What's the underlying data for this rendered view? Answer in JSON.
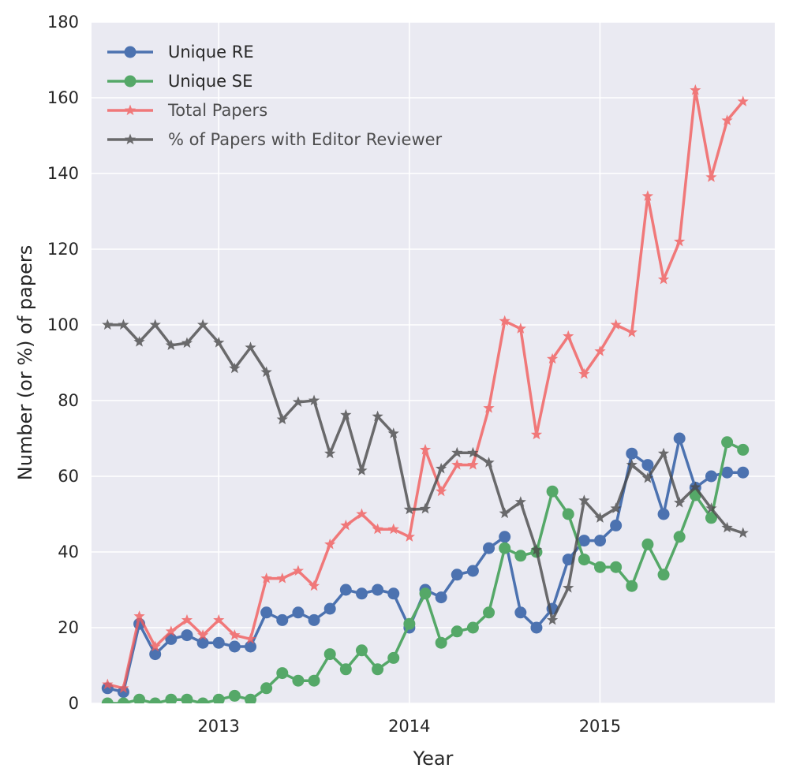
{
  "chart_data": {
    "type": "line",
    "title": "",
    "xlabel": "Year",
    "ylabel": "Number (or %) of papers",
    "xlim": [
      2012.333,
      2015.917
    ],
    "ylim": [
      0,
      180
    ],
    "x_ticks": [
      {
        "value": 2013,
        "label": "2013"
      },
      {
        "value": 2014,
        "label": "2014"
      },
      {
        "value": 2015,
        "label": "2015"
      }
    ],
    "y_ticks": [
      {
        "value": 0,
        "label": "0"
      },
      {
        "value": 20,
        "label": "20"
      },
      {
        "value": 40,
        "label": "40"
      },
      {
        "value": 60,
        "label": "60"
      },
      {
        "value": 80,
        "label": "80"
      },
      {
        "value": 100,
        "label": "100"
      },
      {
        "value": 120,
        "label": "120"
      },
      {
        "value": 140,
        "label": "140"
      },
      {
        "value": 160,
        "label": "160"
      },
      {
        "value": 180,
        "label": "180"
      }
    ],
    "grid": true,
    "legend_position": "top-left",
    "x_start": 2012.417,
    "x_step_months": 1,
    "series": [
      {
        "name": "Unique RE",
        "color": "#4c72b0",
        "marker": "circle",
        "values": [
          4,
          3,
          21,
          13,
          17,
          18,
          16,
          16,
          15,
          15,
          24,
          22,
          24,
          22,
          25,
          30,
          29,
          30,
          29,
          20,
          30,
          28,
          34,
          35,
          41,
          44,
          24,
          20,
          25,
          38,
          43,
          43,
          47,
          66,
          63,
          50,
          70,
          57,
          60,
          61,
          61
        ]
      },
      {
        "name": "Unique SE",
        "color": "#55a868",
        "marker": "circle",
        "values": [
          0,
          0,
          1,
          0,
          1,
          1,
          0,
          1,
          2,
          1,
          4,
          8,
          6,
          6,
          13,
          9,
          14,
          9,
          12,
          21,
          29,
          16,
          19,
          20,
          24,
          41,
          39,
          40,
          56,
          50,
          38,
          36,
          36,
          31,
          42,
          34,
          44,
          55,
          49,
          69,
          67
        ]
      },
      {
        "name": "Total Papers",
        "color": "#f25c5c",
        "marker": "star",
        "values": [
          5,
          4,
          23,
          15,
          19,
          22,
          18,
          22,
          18,
          17,
          33,
          33,
          35,
          31,
          42,
          47,
          50,
          46,
          46,
          44,
          67,
          56,
          63,
          63,
          78,
          101,
          99,
          71,
          91,
          97,
          87,
          93,
          100,
          98,
          134,
          112,
          122,
          162,
          139,
          154,
          159
        ]
      },
      {
        "name": "% of Papers with Editor Reviewer",
        "color": "#4a4a4a",
        "marker": "star",
        "values": [
          100,
          100,
          95.5,
          100,
          94.6,
          95.2,
          100,
          95.3,
          88.5,
          94,
          87.5,
          75,
          79.6,
          80,
          66,
          76.2,
          61.5,
          75.8,
          71.3,
          51.2,
          51.4,
          62,
          66.2,
          66.2,
          63.6,
          50.2,
          53.2,
          40.5,
          22,
          30.5,
          53.6,
          49,
          51.5,
          63,
          59.5,
          66,
          53,
          57.1,
          51.5,
          46.4,
          45
        ]
      }
    ]
  }
}
